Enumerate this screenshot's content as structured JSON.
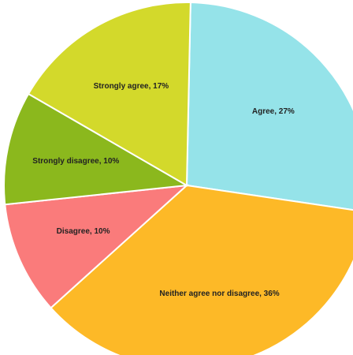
{
  "chart_data": {
    "type": "pie",
    "values": [
      27,
      36,
      10,
      10,
      17
    ],
    "value_labels": [
      "Agree, 27%",
      "Neither agree nor disagree, 36%",
      "Disagree, 10%",
      "Strongly disagree, 10%",
      "Strongly agree, 17%"
    ],
    "colors": [
      "#95e3e9",
      "#fdb927",
      "#fa7b7b",
      "#8bb81d",
      "#d3d92b"
    ]
  }
}
